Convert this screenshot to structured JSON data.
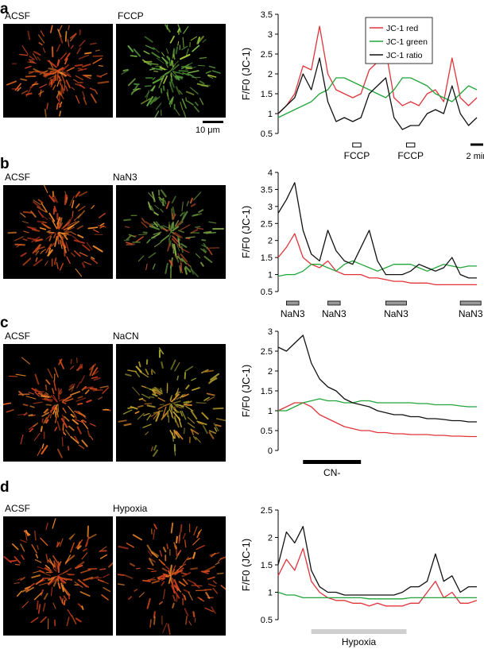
{
  "colors": {
    "red": "#e0343b",
    "green": "#22a53a",
    "black": "#111111",
    "bar_gray": "#999999",
    "hyp_gray": "#cfcfcf"
  },
  "scalebar_label": "10 μm",
  "panels": [
    {
      "letter": "a",
      "img1": "ACSF",
      "img2": "FCCP",
      "tint2": "green"
    },
    {
      "letter": "b",
      "img1": "ACSF",
      "img2": "NaN3",
      "tint2": "greenred"
    },
    {
      "letter": "c",
      "img1": "ACSF",
      "img2": "NaCN",
      "tint2": "yellow"
    },
    {
      "letter": "d",
      "img1": "ACSF",
      "img2": "Hypoxia",
      "tint2": "orange"
    }
  ],
  "chart_data": [
    {
      "type": "line",
      "ylabel": "F/F0 (JC-1)",
      "ylim": [
        0.5,
        3.5
      ],
      "yticks": [
        "0.5",
        "1",
        "1.5",
        "2",
        "2.5",
        "3",
        "3.5"
      ],
      "legend": [
        "JC-1 red",
        "JC-1 green",
        "JC-1 ratio"
      ],
      "x": [
        0,
        1,
        2,
        3,
        4,
        5,
        6,
        7,
        8,
        9,
        10,
        11,
        12,
        13,
        14,
        15,
        16,
        17,
        18,
        19,
        20,
        21,
        22,
        23,
        24
      ],
      "series": [
        {
          "name": "JC-1 red",
          "color": "red",
          "values": [
            1.0,
            1.2,
            1.5,
            2.2,
            2.1,
            3.2,
            2.0,
            1.6,
            1.5,
            1.4,
            1.5,
            2.1,
            2.3,
            2.6,
            1.4,
            1.2,
            1.3,
            1.2,
            1.5,
            1.6,
            1.3,
            2.4,
            1.4,
            1.2,
            1.4
          ]
        },
        {
          "name": "JC-1 green",
          "color": "green",
          "values": [
            0.9,
            1.0,
            1.1,
            1.2,
            1.3,
            1.5,
            1.6,
            1.9,
            1.9,
            1.8,
            1.7,
            1.6,
            1.5,
            1.4,
            1.6,
            1.9,
            1.9,
            1.8,
            1.7,
            1.5,
            1.4,
            1.3,
            1.5,
            1.7,
            1.6
          ]
        },
        {
          "name": "JC-1 ratio",
          "color": "black",
          "values": [
            1.0,
            1.2,
            1.4,
            2.0,
            1.6,
            2.4,
            1.3,
            0.8,
            0.9,
            0.8,
            0.9,
            1.5,
            1.7,
            1.9,
            0.9,
            0.6,
            0.7,
            0.7,
            1.0,
            1.1,
            1.0,
            1.7,
            1.0,
            0.7,
            0.9
          ]
        }
      ],
      "bars": [
        {
          "label": "FCCP",
          "from": 9,
          "to": 10
        },
        {
          "label": "FCCP",
          "from": 15.5,
          "to": 16.5
        }
      ],
      "timebar": "2 min"
    },
    {
      "type": "line",
      "ylabel": "F/F0 (JC-1)",
      "ylim": [
        0.5,
        4
      ],
      "yticks": [
        "0.5",
        "1",
        "1.5",
        "2",
        "2.5",
        "3",
        "3.5",
        "4"
      ],
      "x": [
        0,
        1,
        2,
        3,
        4,
        5,
        6,
        7,
        8,
        9,
        10,
        11,
        12,
        13,
        14,
        15,
        16,
        17,
        18,
        19,
        20,
        21,
        22,
        23,
        24
      ],
      "series": [
        {
          "color": "red",
          "values": [
            1.5,
            1.8,
            2.2,
            1.5,
            1.3,
            1.2,
            1.4,
            1.1,
            1.0,
            1.0,
            1.0,
            0.9,
            0.9,
            0.85,
            0.8,
            0.8,
            0.75,
            0.75,
            0.75,
            0.7,
            0.7,
            0.7,
            0.7,
            0.7,
            0.7
          ]
        },
        {
          "color": "green",
          "values": [
            0.95,
            1.0,
            1.0,
            1.1,
            1.3,
            1.3,
            1.2,
            1.1,
            1.3,
            1.4,
            1.3,
            1.2,
            1.1,
            1.2,
            1.3,
            1.3,
            1.3,
            1.2,
            1.1,
            1.2,
            1.3,
            1.25,
            1.2,
            1.25,
            1.25
          ]
        },
        {
          "color": "black",
          "values": [
            2.8,
            3.2,
            3.7,
            2.3,
            1.6,
            1.4,
            2.3,
            1.7,
            1.4,
            1.3,
            1.8,
            2.3,
            1.4,
            1.0,
            1.0,
            1.0,
            1.1,
            1.3,
            1.2,
            1.1,
            1.2,
            1.5,
            1.0,
            0.9,
            0.9
          ]
        }
      ],
      "bars": [
        {
          "label": "NaN3",
          "from": 1,
          "to": 2.5
        },
        {
          "label": "NaN3",
          "from": 6,
          "to": 7.5
        },
        {
          "label": "NaN3",
          "from": 13,
          "to": 15.5
        },
        {
          "label": "NaN3",
          "from": 22,
          "to": 24.5
        }
      ]
    },
    {
      "type": "line",
      "ylabel": "F/F0 (JC-1)",
      "ylim": [
        0,
        3
      ],
      "yticks": [
        "0",
        "0.5",
        "1",
        "1.5",
        "2",
        "2.5",
        "3"
      ],
      "x": [
        0,
        1,
        2,
        3,
        4,
        5,
        6,
        7,
        8,
        9,
        10,
        11,
        12,
        13,
        14,
        15,
        16,
        17,
        18,
        19,
        20,
        21,
        22,
        23,
        24
      ],
      "series": [
        {
          "color": "red",
          "values": [
            1.0,
            1.1,
            1.2,
            1.2,
            1.1,
            0.9,
            0.8,
            0.7,
            0.6,
            0.55,
            0.5,
            0.5,
            0.45,
            0.45,
            0.42,
            0.42,
            0.4,
            0.4,
            0.4,
            0.38,
            0.38,
            0.36,
            0.36,
            0.35,
            0.35
          ]
        },
        {
          "color": "green",
          "values": [
            1.0,
            1.0,
            1.1,
            1.2,
            1.25,
            1.3,
            1.25,
            1.25,
            1.2,
            1.2,
            1.25,
            1.25,
            1.2,
            1.2,
            1.2,
            1.2,
            1.2,
            1.18,
            1.18,
            1.15,
            1.15,
            1.15,
            1.12,
            1.1,
            1.1
          ]
        },
        {
          "color": "black",
          "values": [
            2.6,
            2.5,
            2.7,
            2.9,
            2.2,
            1.8,
            1.6,
            1.5,
            1.3,
            1.2,
            1.15,
            1.1,
            1.0,
            0.95,
            0.9,
            0.9,
            0.85,
            0.85,
            0.8,
            0.8,
            0.78,
            0.75,
            0.75,
            0.72,
            0.72
          ]
        }
      ],
      "bars": [
        {
          "label": "CN-",
          "from": 3,
          "to": 10
        }
      ]
    },
    {
      "type": "line",
      "ylabel": "F/F0 (JC-1)",
      "ylim": [
        0.5,
        2.5
      ],
      "yticks": [
        "0.5",
        "1",
        "1.5",
        "2",
        "2.5"
      ],
      "x": [
        0,
        1,
        2,
        3,
        4,
        5,
        6,
        7,
        8,
        9,
        10,
        11,
        12,
        13,
        14,
        15,
        16,
        17,
        18,
        19,
        20,
        21,
        22,
        23,
        24
      ],
      "series": [
        {
          "color": "red",
          "values": [
            1.3,
            1.6,
            1.4,
            1.8,
            1.2,
            1.0,
            0.9,
            0.85,
            0.85,
            0.8,
            0.8,
            0.75,
            0.8,
            0.75,
            0.75,
            0.75,
            0.8,
            0.8,
            1.0,
            1.2,
            0.9,
            1.0,
            0.8,
            0.8,
            0.85
          ]
        },
        {
          "color": "green",
          "values": [
            1.0,
            0.95,
            0.95,
            0.9,
            0.9,
            0.9,
            0.9,
            0.9,
            0.9,
            0.9,
            0.9,
            0.88,
            0.88,
            0.88,
            0.88,
            0.88,
            0.9,
            0.9,
            0.9,
            0.9,
            0.9,
            0.9,
            0.9,
            0.9,
            0.9
          ]
        },
        {
          "color": "black",
          "values": [
            1.5,
            2.1,
            1.9,
            2.2,
            1.4,
            1.1,
            1.0,
            1.0,
            0.95,
            0.95,
            0.95,
            0.95,
            0.95,
            0.95,
            0.95,
            1.0,
            1.1,
            1.1,
            1.2,
            1.7,
            1.2,
            1.3,
            1.0,
            1.1,
            1.1
          ]
        }
      ],
      "bars": [
        {
          "label": "Hypoxia",
          "from": 4,
          "to": 15.5
        }
      ]
    }
  ]
}
